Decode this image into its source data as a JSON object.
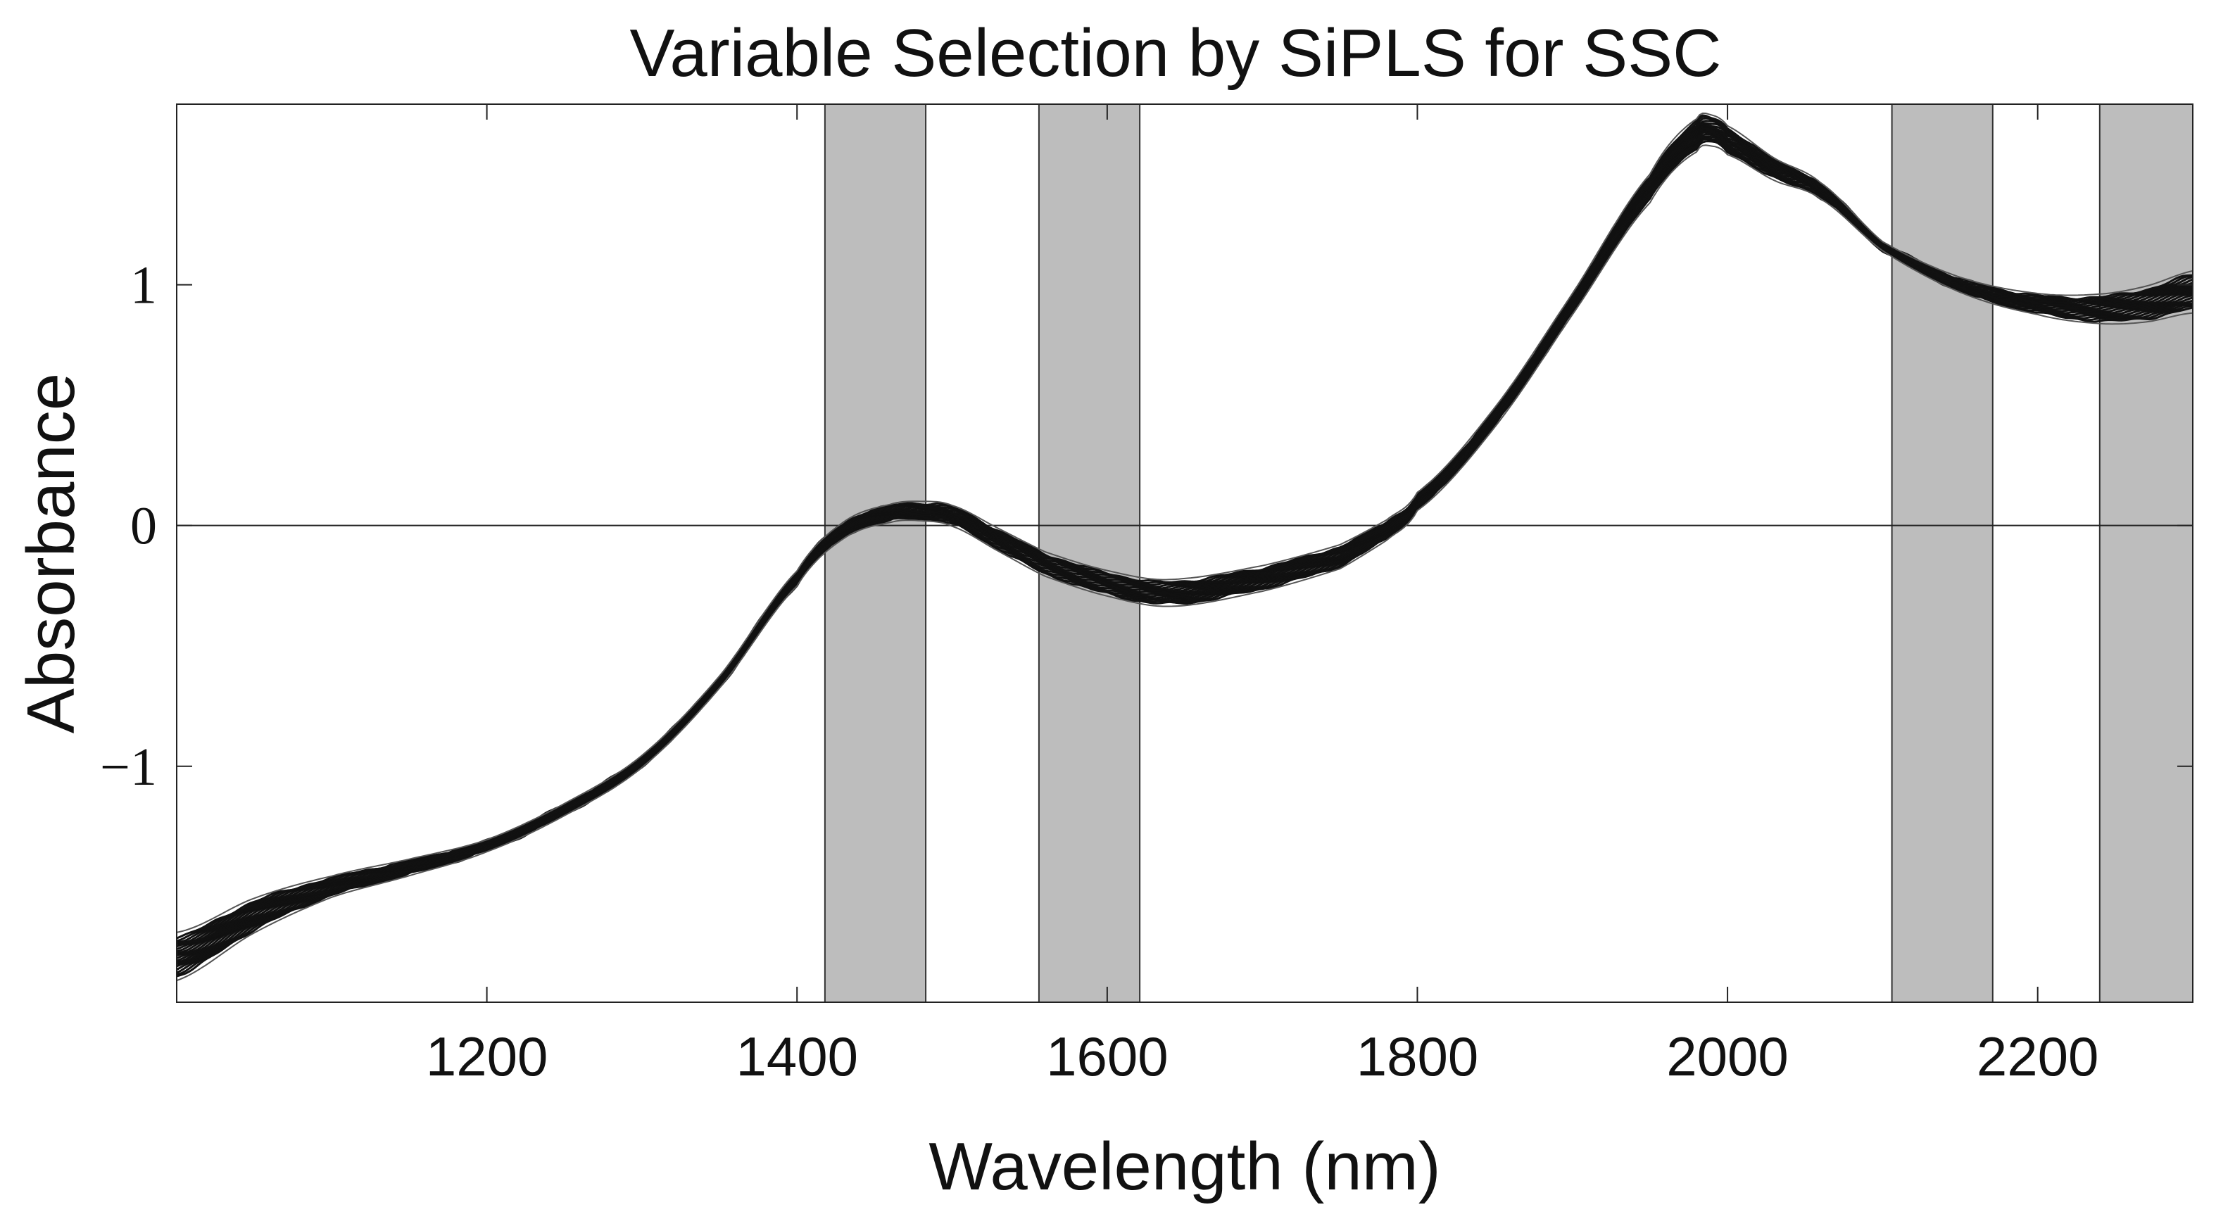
{
  "chart_data": {
    "type": "line",
    "title": "Variable Selection by SiPLS for SSC",
    "xlabel": "Wavelength (nm)",
    "ylabel": "Absorbance",
    "xlim": [
      1000,
      2300
    ],
    "ylim": [
      -1.98,
      1.75
    ],
    "xticks": [
      1200,
      1400,
      1600,
      1800,
      2000,
      2200
    ],
    "xtick_labels": [
      "1200",
      "1400",
      "1600",
      "1800",
      "2000",
      "2200"
    ],
    "yticks": [
      -1,
      0,
      1
    ],
    "ytick_labels": [
      "−1",
      "0",
      "1"
    ],
    "zero_line": 0,
    "selected_intervals": [
      {
        "start": 1418,
        "end": 1483
      },
      {
        "start": 1556,
        "end": 1621
      },
      {
        "start": 2106,
        "end": 2171
      },
      {
        "start": 2240,
        "end": 2300
      }
    ],
    "mean_spectrum": {
      "x": [
        1000,
        1050,
        1100,
        1150,
        1200,
        1250,
        1300,
        1350,
        1400,
        1430,
        1460,
        1480,
        1500,
        1530,
        1560,
        1600,
        1640,
        1700,
        1750,
        1780,
        1800,
        1850,
        1900,
        1950,
        1980,
        1990,
        2000,
        2030,
        2060,
        2100,
        2150,
        2200,
        2240,
        2270,
        2300
      ],
      "y": [
        -1.79,
        -1.62,
        -1.5,
        -1.42,
        -1.33,
        -1.18,
        -0.98,
        -0.65,
        -0.22,
        -0.02,
        0.05,
        0.06,
        0.04,
        -0.06,
        -0.16,
        -0.24,
        -0.28,
        -0.22,
        -0.13,
        -0.02,
        0.1,
        0.45,
        0.92,
        1.4,
        1.62,
        1.64,
        1.6,
        1.48,
        1.39,
        1.16,
        1.0,
        0.92,
        0.9,
        0.92,
        0.97
      ]
    },
    "series_count": 20,
    "spread": {
      "x": [
        1000,
        1100,
        1200,
        1300,
        1350,
        1400,
        1460,
        1550,
        1650,
        1750,
        1800,
        1900,
        1980,
        2050,
        2100,
        2200,
        2300
      ],
      "half_width": [
        0.08,
        0.035,
        0.02,
        0.02,
        0.02,
        0.025,
        0.03,
        0.04,
        0.045,
        0.04,
        0.03,
        0.035,
        0.055,
        0.03,
        0.015,
        0.035,
        0.07
      ]
    }
  },
  "colors": {
    "band_fill": "#bdbdbd",
    "band_stroke": "#333333",
    "line": "#111111",
    "axis": "#222222"
  }
}
